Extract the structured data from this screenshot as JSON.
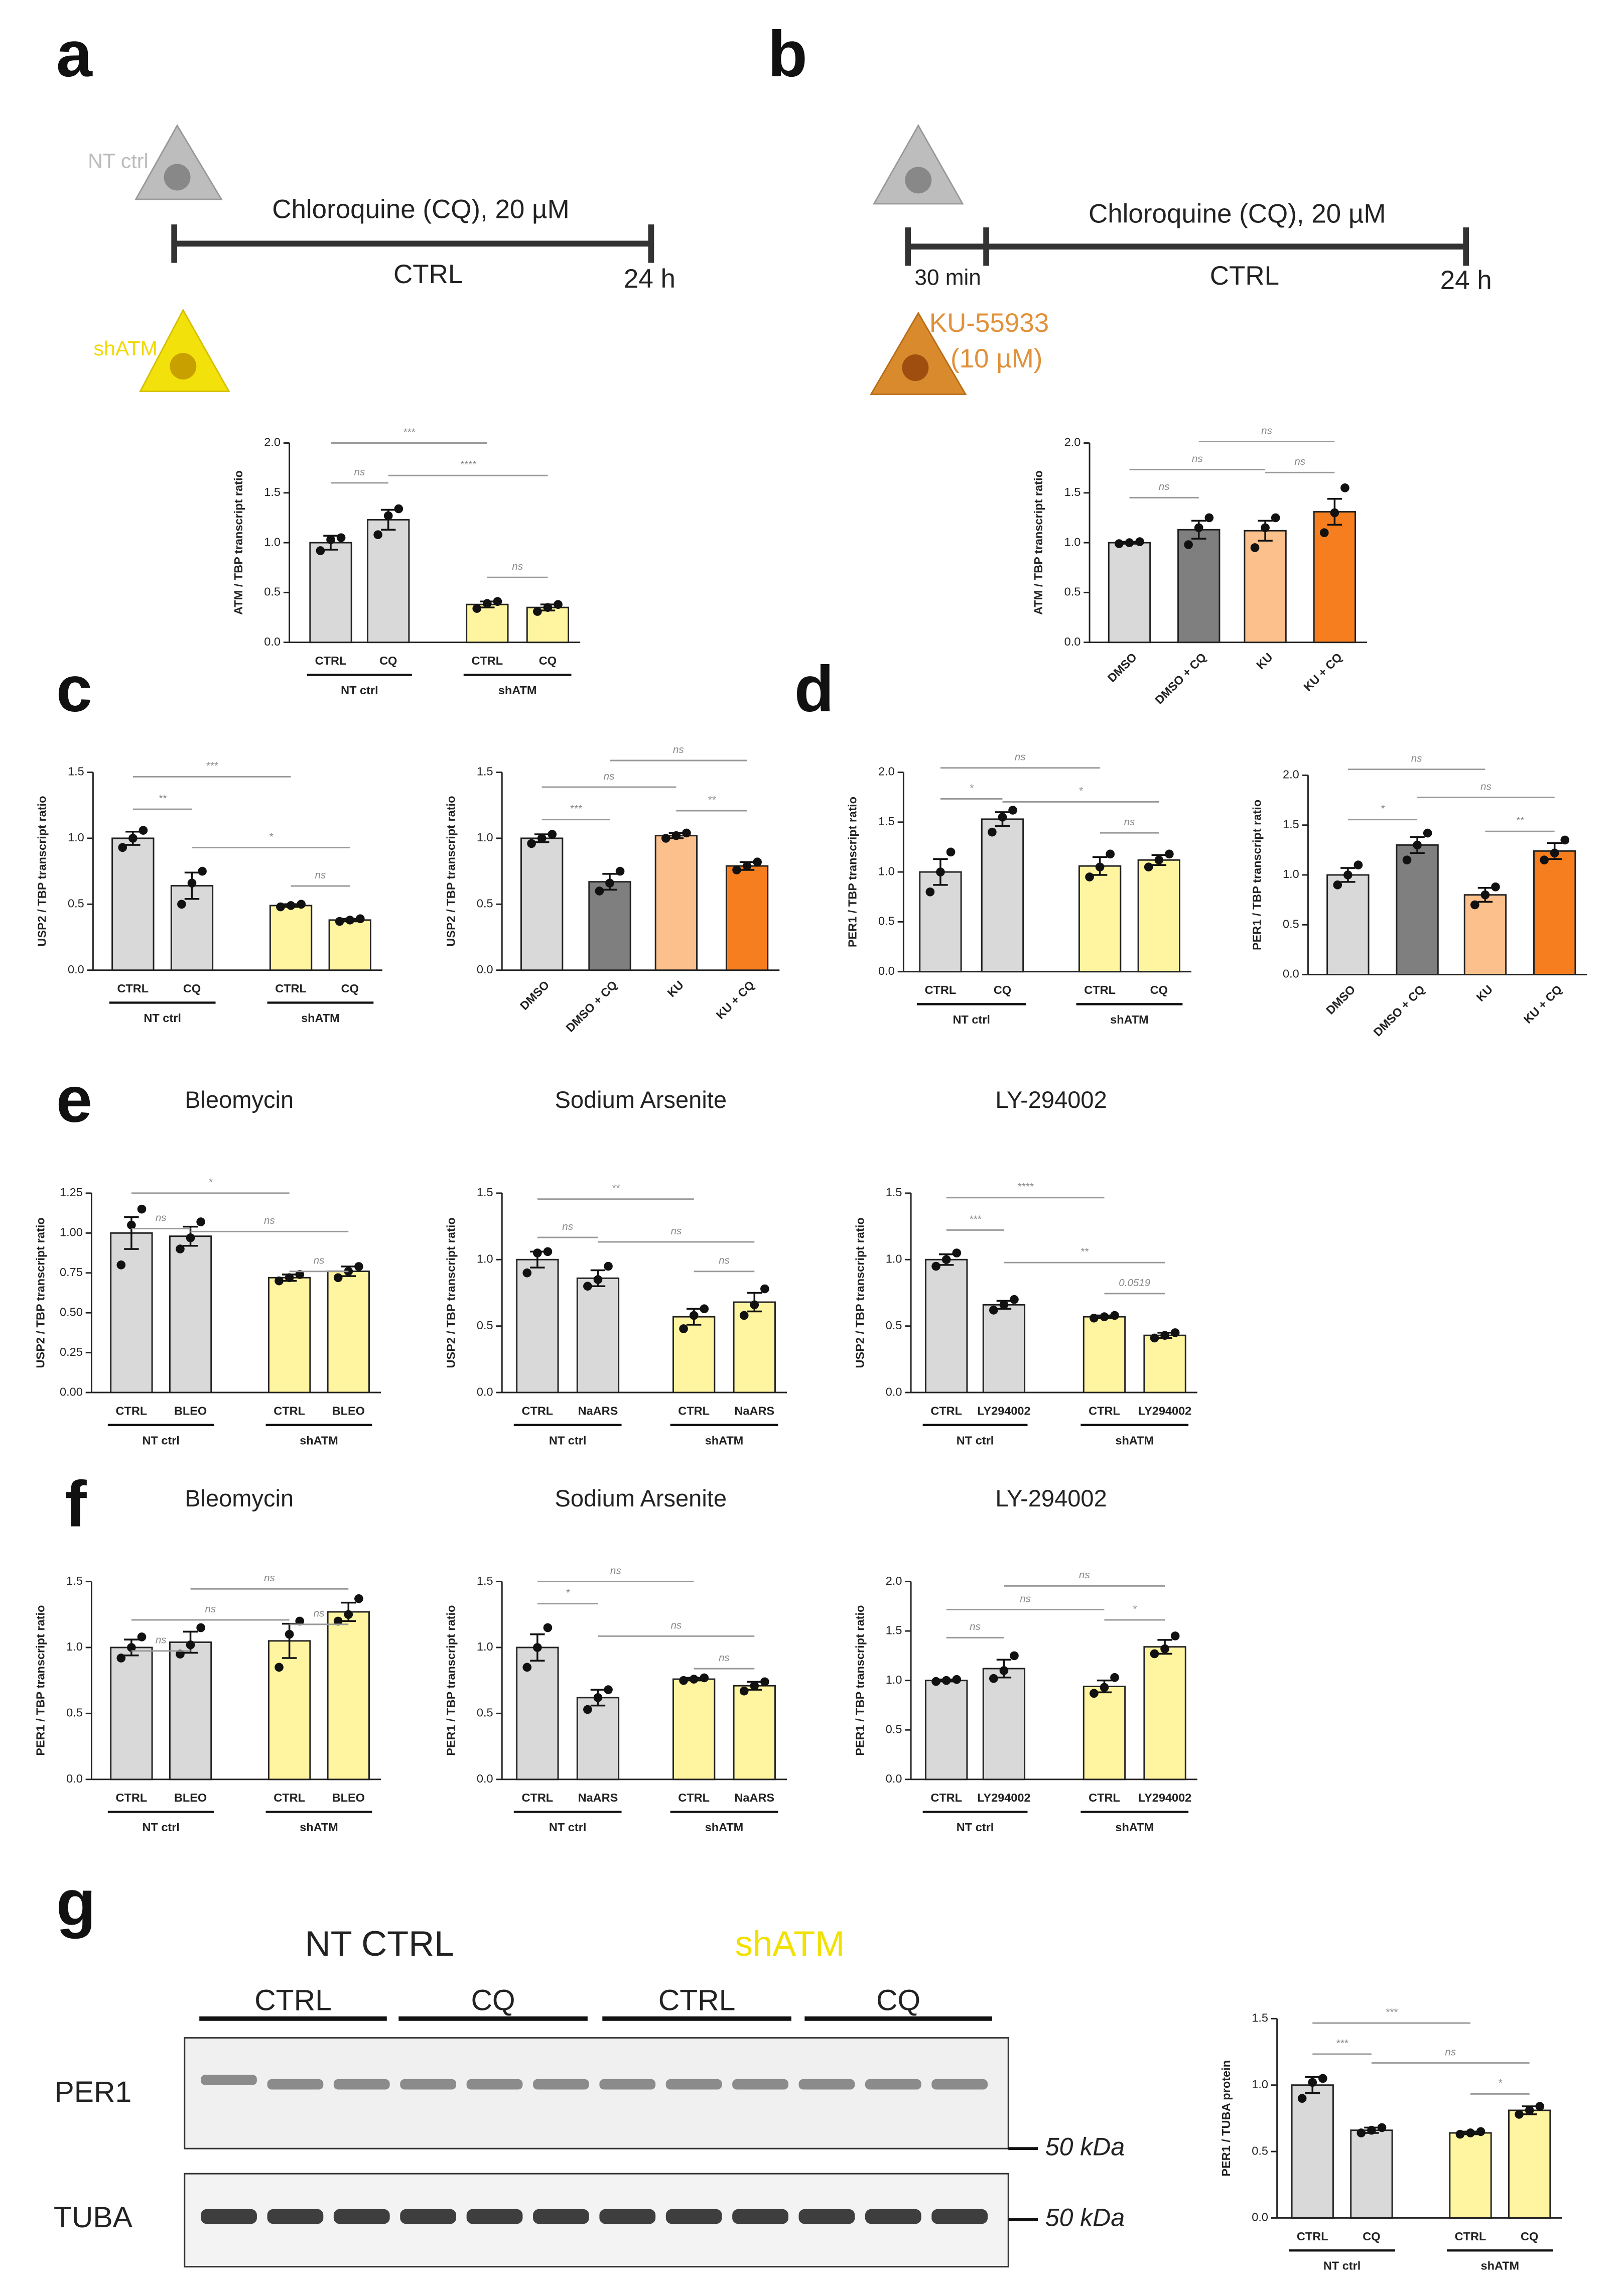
{
  "figure": {
    "panels": [
      "a",
      "b",
      "c",
      "d",
      "e",
      "f",
      "g"
    ],
    "a": {
      "cell_top": "NT ctrl",
      "treatment": "Chloroquine (CQ), 20 µM",
      "control": "CTRL",
      "end": "24 h",
      "cell_bottom": "shATM"
    },
    "b": {
      "treatment": "Chloroquine (CQ), 20 µM",
      "pre": "30 min",
      "control": "CTRL",
      "end": "24 h",
      "inhibitor": "KU-55933",
      "dose": "(10 µM)"
    },
    "g": {
      "group1": "NT CTRL",
      "group2": "shATM",
      "lanes": [
        "CTRL",
        "CQ",
        "CTRL",
        "CQ"
      ],
      "blots": [
        "PER1",
        "TUBA"
      ],
      "markers": [
        "50 kDa",
        "50 kDa"
      ]
    }
  },
  "chart_data": [
    {
      "type": "bar",
      "ylabel": "ATM / TBP transcript ratio",
      "categories": [
        "CTRL",
        "CQ",
        "CTRL",
        "CQ"
      ],
      "groups": [
        "NT ctrl",
        "shATM"
      ],
      "values": [
        1.0,
        1.23,
        0.38,
        0.35
      ],
      "errors": [
        0.07,
        0.1,
        0.03,
        0.03
      ],
      "points": [
        [
          0.92,
          1.03,
          1.05
        ],
        [
          1.08,
          1.27,
          1.34
        ],
        [
          0.34,
          0.39,
          0.41
        ],
        [
          0.31,
          0.35,
          0.38
        ]
      ],
      "colors": [
        "#d9d9d9",
        "#d9d9d9",
        "#fff5a0",
        "#fff5a0"
      ],
      "annotations": [
        "ns",
        "***",
        "****",
        "ns"
      ],
      "ylim": [
        0,
        2
      ],
      "yticks": [
        {
          "value": 0,
          "label": "0.0"
        },
        0.5,
        {
          "value": 1,
          "label": "1.0"
        },
        1.5,
        {
          "value": 2,
          "label": "2.0"
        }
      ]
    },
    {
      "type": "bar",
      "ylabel": "ATM / TBP transcript ratio",
      "categories": [
        "DMSO",
        "DMSO + CQ",
        "KU",
        "KU + CQ"
      ],
      "values": [
        1.0,
        1.13,
        1.12,
        1.31
      ],
      "errors": [
        0.01,
        0.09,
        0.1,
        0.13
      ],
      "points": [
        [
          0.99,
          1.0,
          1.01
        ],
        [
          0.98,
          1.15,
          1.25
        ],
        [
          0.95,
          1.15,
          1.25
        ],
        [
          1.1,
          1.3,
          1.55
        ]
      ],
      "colors": [
        "#d9d9d9",
        "#7f7f7f",
        "#fcc08c",
        "#f77e1e"
      ],
      "annotations": [
        "ns",
        "ns",
        "ns",
        "ns"
      ],
      "ylim": [
        0,
        2
      ],
      "yticks": [
        {
          "value": 0,
          "label": "0.0"
        },
        0.5,
        {
          "value": 1,
          "label": "1.0"
        },
        1.5,
        {
          "value": 2,
          "label": "2.0"
        }
      ]
    },
    {
      "type": "bar",
      "ylabel": "USP2 / TBP transcript ratio",
      "categories": [
        "CTRL",
        "CQ",
        "CTRL",
        "CQ"
      ],
      "groups": [
        "NT ctrl",
        "shATM"
      ],
      "values": [
        1.0,
        0.64,
        0.49,
        0.38
      ],
      "errors": [
        0.05,
        0.1,
        0.01,
        0.01
      ],
      "points": [
        [
          0.93,
          1.0,
          1.06
        ],
        [
          0.5,
          0.66,
          0.75
        ],
        [
          0.48,
          0.49,
          0.5
        ],
        [
          0.37,
          0.38,
          0.39
        ]
      ],
      "colors": [
        "#d9d9d9",
        "#d9d9d9",
        "#fff5a0",
        "#fff5a0"
      ],
      "annotations": [
        "***",
        "**",
        "*",
        "ns"
      ],
      "ylim": [
        0,
        1.5
      ],
      "yticks": [
        {
          "value": 0,
          "label": "0.0"
        },
        0.5,
        {
          "value": 1,
          "label": "1.0"
        },
        1.5
      ]
    },
    {
      "type": "bar",
      "ylabel": "USP2 / TBP transcript ratio",
      "categories": [
        "DMSO",
        "DMSO + CQ",
        "KU",
        "KU + CQ"
      ],
      "values": [
        1.0,
        0.67,
        1.02,
        0.79
      ],
      "errors": [
        0.03,
        0.06,
        0.02,
        0.03
      ],
      "points": [
        [
          0.96,
          1.0,
          1.03
        ],
        [
          0.6,
          0.66,
          0.75
        ],
        [
          1.0,
          1.02,
          1.04
        ],
        [
          0.76,
          0.79,
          0.82
        ]
      ],
      "colors": [
        "#d9d9d9",
        "#7f7f7f",
        "#fcc08c",
        "#f77e1e"
      ],
      "annotations": [
        "ns",
        "ns",
        "***",
        "**"
      ],
      "ylim": [
        0,
        1.5
      ],
      "yticks": [
        {
          "value": 0,
          "label": "0.0"
        },
        0.5,
        {
          "value": 1,
          "label": "1.0"
        },
        1.5
      ]
    },
    {
      "type": "bar",
      "ylabel": "PER1 / TBP transcript ratio",
      "categories": [
        "CTRL",
        "CQ",
        "CTRL",
        "CQ"
      ],
      "groups": [
        "NT ctrl",
        "shATM"
      ],
      "values": [
        1.0,
        1.53,
        1.06,
        1.12
      ],
      "errors": [
        0.13,
        0.07,
        0.09,
        0.05
      ],
      "points": [
        [
          0.8,
          1.0,
          1.2
        ],
        [
          1.4,
          1.55,
          1.62
        ],
        [
          0.95,
          1.05,
          1.18
        ],
        [
          1.05,
          1.12,
          1.18
        ]
      ],
      "colors": [
        "#d9d9d9",
        "#d9d9d9",
        "#fff5a0",
        "#fff5a0"
      ],
      "annotations": [
        "ns",
        "*",
        "*",
        "ns"
      ],
      "ylim": [
        0,
        2
      ],
      "yticks": [
        {
          "value": 0,
          "label": "0.0"
        },
        0.5,
        {
          "value": 1,
          "label": "1.0"
        },
        1.5,
        {
          "value": 2,
          "label": "2.0"
        }
      ]
    },
    {
      "type": "bar",
      "ylabel": "PER1 / TBP transcript ratio",
      "categories": [
        "DMSO",
        "DMSO + CQ",
        "KU",
        "KU + CQ"
      ],
      "values": [
        1.0,
        1.3,
        0.8,
        1.24
      ],
      "errors": [
        0.07,
        0.08,
        0.07,
        0.08
      ],
      "points": [
        [
          0.9,
          1.0,
          1.1
        ],
        [
          1.15,
          1.3,
          1.42
        ],
        [
          0.7,
          0.8,
          0.88
        ],
        [
          1.15,
          1.22,
          1.35
        ]
      ],
      "colors": [
        "#d9d9d9",
        "#7f7f7f",
        "#fcc08c",
        "#f77e1e"
      ],
      "annotations": [
        "ns",
        "ns",
        "*",
        "**"
      ],
      "ylim": [
        0,
        2
      ],
      "yticks": [
        {
          "value": 0,
          "label": "0.0"
        },
        0.5,
        {
          "value": 1,
          "label": "1.0"
        },
        1.5,
        {
          "value": 2,
          "label": "2.0"
        }
      ]
    },
    {
      "type": "bar",
      "title": "Bleomycin",
      "ylabel": "USP2 / TBP transcript ratio",
      "categories": [
        "CTRL",
        "BLEO",
        "CTRL",
        "BLEO"
      ],
      "groups": [
        "NT ctrl",
        "shATM"
      ],
      "values": [
        1.0,
        0.98,
        0.72,
        0.76
      ],
      "errors": [
        0.1,
        0.06,
        0.02,
        0.03
      ],
      "points": [
        [
          0.8,
          1.05,
          1.15
        ],
        [
          0.9,
          0.97,
          1.07
        ],
        [
          0.7,
          0.72,
          0.74
        ],
        [
          0.72,
          0.76,
          0.79
        ]
      ],
      "colors": [
        "#d9d9d9",
        "#d9d9d9",
        "#fff5a0",
        "#fff5a0"
      ],
      "annotations": [
        "*",
        "ns",
        "ns",
        "ns"
      ],
      "ylim": [
        0,
        1.25
      ],
      "yticks": [
        {
          "value": 0,
          "label": "0.00"
        },
        0.25,
        {
          "value": 0.5,
          "label": "0.50"
        },
        0.75,
        {
          "value": 1,
          "label": "1.00"
        },
        1.25
      ]
    },
    {
      "type": "bar",
      "title": "Sodium Arsenite",
      "ylabel": "USP2 / TBP transcript ratio",
      "categories": [
        "CTRL",
        "NaARS",
        "CTRL",
        "NaARS"
      ],
      "groups": [
        "NT ctrl",
        "shATM"
      ],
      "values": [
        1.0,
        0.86,
        0.57,
        0.68
      ],
      "errors": [
        0.06,
        0.06,
        0.06,
        0.07
      ],
      "points": [
        [
          0.9,
          1.05,
          1.06
        ],
        [
          0.8,
          0.85,
          0.95
        ],
        [
          0.48,
          0.58,
          0.63
        ],
        [
          0.58,
          0.66,
          0.78
        ]
      ],
      "colors": [
        "#d9d9d9",
        "#d9d9d9",
        "#fff5a0",
        "#fff5a0"
      ],
      "annotations": [
        "**",
        "ns",
        "ns",
        "ns"
      ],
      "ylim": [
        0,
        1.5
      ],
      "yticks": [
        {
          "value": 0,
          "label": "0.0"
        },
        0.5,
        {
          "value": 1,
          "label": "1.0"
        },
        1.5
      ]
    },
    {
      "type": "bar",
      "title": "LY-294002",
      "ylabel": "USP2 / TBP transcript ratio",
      "categories": [
        "CTRL",
        "LY294002",
        "CTRL",
        "LY294002"
      ],
      "groups": [
        "NT ctrl",
        "shATM"
      ],
      "values": [
        1.0,
        0.66,
        0.57,
        0.43
      ],
      "errors": [
        0.04,
        0.03,
        0.01,
        0.02
      ],
      "points": [
        [
          0.95,
          1.0,
          1.05
        ],
        [
          0.62,
          0.66,
          0.7
        ],
        [
          0.56,
          0.57,
          0.58
        ],
        [
          0.41,
          0.43,
          0.45
        ]
      ],
      "colors": [
        "#d9d9d9",
        "#d9d9d9",
        "#fff5a0",
        "#fff5a0"
      ],
      "annotations": [
        "****",
        "***",
        "**",
        "0.0519"
      ],
      "ylim": [
        0,
        1.5
      ],
      "yticks": [
        {
          "value": 0,
          "label": "0.0"
        },
        0.5,
        {
          "value": 1,
          "label": "1.0"
        },
        1.5
      ]
    },
    {
      "type": "bar",
      "title": "Bleomycin",
      "ylabel": "PER1 / TBP transcript ratio",
      "categories": [
        "CTRL",
        "BLEO",
        "CTRL",
        "BLEO"
      ],
      "groups": [
        "NT ctrl",
        "shATM"
      ],
      "values": [
        1.0,
        1.04,
        1.05,
        1.27
      ],
      "errors": [
        0.06,
        0.08,
        0.13,
        0.07
      ],
      "points": [
        [
          0.92,
          1.0,
          1.08
        ],
        [
          0.95,
          1.02,
          1.15
        ],
        [
          0.85,
          1.1,
          1.2
        ],
        [
          1.2,
          1.25,
          1.37
        ]
      ],
      "colors": [
        "#d9d9d9",
        "#d9d9d9",
        "#fff5a0",
        "#fff5a0"
      ],
      "annotations": [
        "ns",
        "ns",
        "ns",
        "ns"
      ],
      "ylim": [
        0,
        1.5
      ],
      "yticks": [
        {
          "value": 0,
          "label": "0.0"
        },
        0.5,
        {
          "value": 1,
          "label": "1.0"
        },
        1.5
      ]
    },
    {
      "type": "bar",
      "title": "Sodium Arsenite",
      "ylabel": "PER1 / TBP transcript ratio",
      "categories": [
        "CTRL",
        "NaARS",
        "CTRL",
        "NaARS"
      ],
      "groups": [
        "NT ctrl",
        "shATM"
      ],
      "values": [
        1.0,
        0.62,
        0.76,
        0.71
      ],
      "errors": [
        0.1,
        0.06,
        0.01,
        0.03
      ],
      "points": [
        [
          0.85,
          1.0,
          1.15
        ],
        [
          0.53,
          0.62,
          0.68
        ],
        [
          0.75,
          0.76,
          0.77
        ],
        [
          0.67,
          0.71,
          0.74
        ]
      ],
      "colors": [
        "#d9d9d9",
        "#d9d9d9",
        "#fff5a0",
        "#fff5a0"
      ],
      "annotations": [
        "ns",
        "*",
        "ns",
        "ns"
      ],
      "ylim": [
        0,
        1.5
      ],
      "yticks": [
        {
          "value": 0,
          "label": "0.0"
        },
        0.5,
        {
          "value": 1,
          "label": "1.0"
        },
        1.5
      ]
    },
    {
      "type": "bar",
      "title": "LY-294002",
      "ylabel": "PER1 / TBP transcript ratio",
      "categories": [
        "CTRL",
        "LY294002",
        "CTRL",
        "LY294002"
      ],
      "groups": [
        "NT ctrl",
        "shATM"
      ],
      "values": [
        1.0,
        1.12,
        0.94,
        1.34
      ],
      "errors": [
        0.01,
        0.09,
        0.06,
        0.07
      ],
      "points": [
        [
          0.99,
          1.0,
          1.01
        ],
        [
          1.02,
          1.1,
          1.25
        ],
        [
          0.87,
          0.93,
          1.03
        ],
        [
          1.27,
          1.32,
          1.45
        ]
      ],
      "colors": [
        "#d9d9d9",
        "#d9d9d9",
        "#fff5a0",
        "#fff5a0"
      ],
      "annotations": [
        "ns",
        "ns",
        "ns",
        "*"
      ],
      "ylim": [
        0,
        2
      ],
      "yticks": [
        {
          "value": 0,
          "label": "0.0"
        },
        0.5,
        {
          "value": 1,
          "label": "1.0"
        },
        1.5,
        {
          "value": 2,
          "label": "2.0"
        }
      ]
    },
    {
      "type": "bar",
      "ylabel": "PER1 / TUBA protein",
      "categories": [
        "CTRL",
        "CQ",
        "CTRL",
        "CQ"
      ],
      "groups": [
        "NT ctrl",
        "shATM"
      ],
      "values": [
        1.0,
        0.66,
        0.64,
        0.81
      ],
      "errors": [
        0.06,
        0.02,
        0.01,
        0.03
      ],
      "points": [
        [
          0.9,
          1.02,
          1.05
        ],
        [
          0.64,
          0.66,
          0.68
        ],
        [
          0.63,
          0.64,
          0.65
        ],
        [
          0.78,
          0.81,
          0.84
        ]
      ],
      "colors": [
        "#d9d9d9",
        "#d9d9d9",
        "#fff5a0",
        "#fff5a0"
      ],
      "annotations": [
        "***",
        "***",
        "ns",
        "*"
      ],
      "ylim": [
        0,
        1.5
      ],
      "yticks": [
        {
          "value": 0,
          "label": "0.0"
        },
        0.5,
        {
          "value": 1,
          "label": "1.0"
        },
        1.5
      ]
    }
  ]
}
